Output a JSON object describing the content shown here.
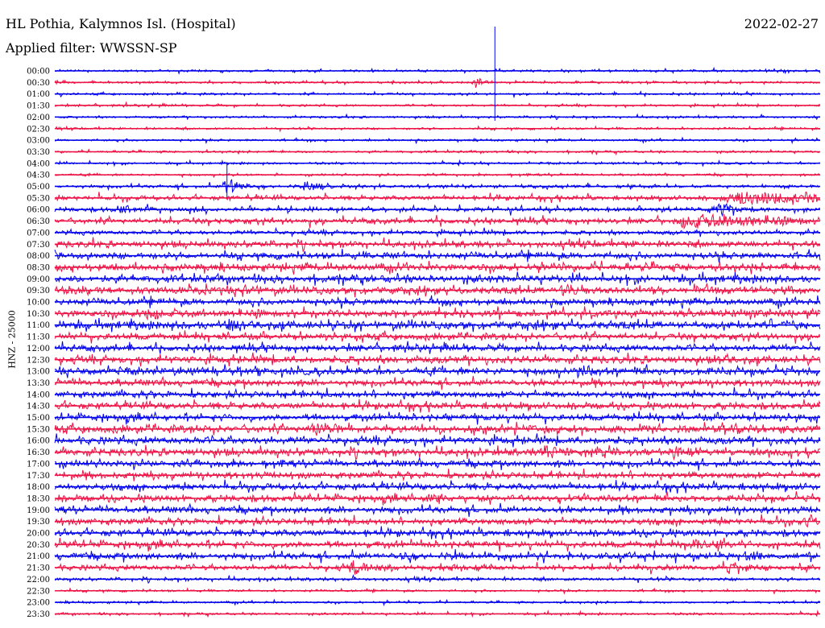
{
  "header": {
    "station": "HL Pothia, Kalymnos Isl. (Hospital)",
    "filter": "Applied filter: WWSSN-SP",
    "date": "2022-02-27",
    "channel": "HNZ - 25000"
  },
  "chart_data": {
    "type": "line",
    "title": "HL Pothia, Kalymnos Isl. (Hospital)",
    "subtitle": "Applied filter: WWSSN-SP",
    "date": "2022-02-27",
    "ylabel": "HNZ - 25000",
    "colors": [
      "#0000ee",
      "#ee1144"
    ],
    "rows": [
      "00:00",
      "00:30",
      "01:00",
      "01:30",
      "02:00",
      "02:30",
      "03:00",
      "03:30",
      "04:00",
      "04:30",
      "05:00",
      "05:30",
      "06:00",
      "06:30",
      "07:00",
      "07:30",
      "08:00",
      "08:30",
      "09:00",
      "09:30",
      "10:00",
      "10:30",
      "11:00",
      "11:30",
      "12:00",
      "12:30",
      "13:00",
      "13:30",
      "14:00",
      "14:30",
      "15:00",
      "15:30",
      "16:00",
      "16:30",
      "17:00",
      "17:30",
      "18:00",
      "18:30",
      "19:00",
      "19:30",
      "20:00",
      "20:30",
      "21:00",
      "21:30",
      "22:00",
      "22:30",
      "23:00",
      "23:30"
    ],
    "noise_level": [
      1,
      1,
      1,
      1,
      1,
      1,
      1,
      1,
      1,
      1,
      1.5,
      2,
      2,
      2.5,
      2,
      3,
      3,
      3.5,
      3.5,
      3.5,
      3,
      3.5,
      4,
      3,
      3,
      3.5,
      3.5,
      3,
      3,
      3,
      3,
      3.5,
      3.5,
      3.5,
      3,
      3,
      3,
      3,
      3,
      3,
      3,
      3,
      3,
      2.5,
      1.5,
      1,
      1,
      1
    ],
    "events": [
      {
        "row": 1,
        "x_frac": 0.55,
        "amp": 1.0,
        "width": 0.012
      },
      {
        "row": 10,
        "x_frac": 0.225,
        "amp": 2.0,
        "width": 0.02
      },
      {
        "row": 10,
        "x_frac": 0.33,
        "amp": 1.5,
        "width": 0.015
      },
      {
        "row": 11,
        "x_frac": 0.9,
        "amp": 1.5,
        "width": 0.12
      },
      {
        "row": 12,
        "x_frac": 0.085,
        "amp": 1.2,
        "width": 0.015
      },
      {
        "row": 12,
        "x_frac": 0.87,
        "amp": 1.5,
        "width": 0.02
      },
      {
        "row": 13,
        "x_frac": 0.84,
        "amp": 1.5,
        "width": 0.11
      },
      {
        "row": 19,
        "x_frac": 0.25,
        "amp": 1.2,
        "width": 0.015
      },
      {
        "row": 19,
        "x_frac": 0.665,
        "amp": 1.3,
        "width": 0.015
      },
      {
        "row": 21,
        "x_frac": 0.12,
        "amp": 1.0,
        "width": 0.02
      },
      {
        "row": 22,
        "x_frac": 0.23,
        "amp": 1.0,
        "width": 0.012
      },
      {
        "row": 25,
        "x_frac": 0.87,
        "amp": 1.0,
        "width": 0.012
      },
      {
        "row": 26,
        "x_frac": 0.685,
        "amp": 1.2,
        "width": 0.015
      },
      {
        "row": 31,
        "x_frac": 0.34,
        "amp": 1.0,
        "width": 0.02
      },
      {
        "row": 33,
        "x_frac": 0.64,
        "amp": 1.3,
        "width": 0.015
      },
      {
        "row": 33,
        "x_frac": 0.81,
        "amp": 1.3,
        "width": 0.015
      },
      {
        "row": 37,
        "x_frac": 0.49,
        "amp": 1.0,
        "width": 0.015
      },
      {
        "row": 39,
        "x_frac": 0.985,
        "amp": 1.3,
        "width": 0.015
      },
      {
        "row": 41,
        "x_frac": 0.83,
        "amp": 1.6,
        "width": 0.018
      },
      {
        "row": 42,
        "x_frac": 0.905,
        "amp": 1.2,
        "width": 0.018
      },
      {
        "row": 42,
        "x_frac": 0.455,
        "amp": 1.0,
        "width": 0.015
      },
      {
        "row": 43,
        "x_frac": 0.39,
        "amp": 1.5,
        "width": 0.02
      },
      {
        "row": 43,
        "x_frac": 0.88,
        "amp": 1.0,
        "width": 0.01
      }
    ],
    "spikes": [
      {
        "row": 0,
        "x_frac": 0.575,
        "amp_up": 55,
        "amp_down": 62
      },
      {
        "row": 10,
        "x_frac": 0.225,
        "amp_up": 30,
        "amp_down": 14
      }
    ]
  }
}
